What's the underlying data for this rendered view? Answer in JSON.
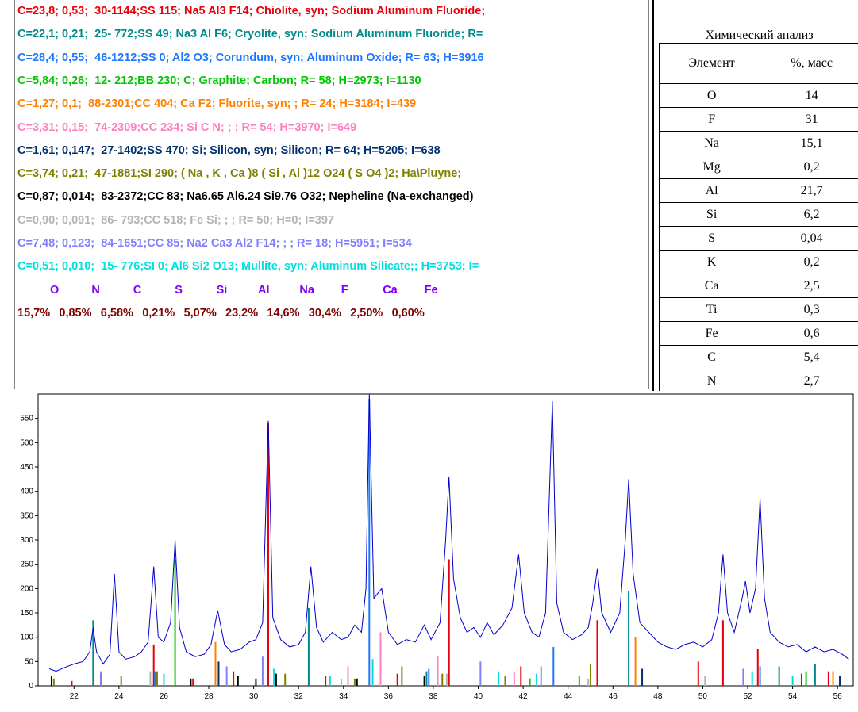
{
  "phase_list": [
    {
      "text": "C=23,8; 0,53;  30-1144;SS 115; Na5 Al3 F14; Chiolite, syn; Sodium Aluminum Fluoride;",
      "color": "#e8000b"
    },
    {
      "text": "C=22,1; 0,21;  25- 772;SS 49; Na3 Al F6; Cryolite, syn; Sodium Aluminum Fluoride; R=",
      "color": "#008b8b"
    },
    {
      "text": "C=28,4; 0,55;  46-1212;SS 0; Al2 O3; Corundum, syn; Aluminum Oxide; R= 63; H=3916",
      "color": "#1e78ff"
    },
    {
      "text": "C=5,84; 0,26;  12- 212;BB 230; C; Graphite; Carbon; R= 58; H=2973; I=1130",
      "color": "#00c800"
    },
    {
      "text": "C=1,27; 0,1;  88-2301;CC 404; Ca F2; Fluorite, syn; ; R= 24; H=3184; I=439",
      "color": "#ff8000"
    },
    {
      "text": "C=3,31; 0,15;  74-2309;CC 234; Si C N; ; ; R= 54; H=3970; I=649",
      "color": "#ff80c0"
    },
    {
      "text": "C=1,61; 0,147;  27-1402;SS 470; Si; Silicon, syn; Silicon; R= 64; H=5205; I=638",
      "color": "#00306e"
    },
    {
      "text": "C=3,74; 0,21;  47-1881;SI 290; ( Na , K , Ca )8 ( Si , Al )12 O24 ( S O4 )2; Ha\\Pluyne;",
      "color": "#808000"
    },
    {
      "text": "C=0,87; 0,014;  83-2372;CC 83; Na6.65 Al6.24 Si9.76 O32; Nepheline (Na-exchanged)",
      "color": "#000000"
    },
    {
      "text": "C=0,90; 0,091;  86- 793;CC 518; Fe Si; ; ; R= 50; H=0; I=397",
      "color": "#b4b4b4"
    },
    {
      "text": "C=7,48; 0,123;  84-1651;CC 85; Na2 Ca3 Al2 F14; ; ; R= 18; H=5951; I=534",
      "color": "#8080ff"
    },
    {
      "text": "C=0,51; 0,010;  15- 776;SI 0; Al6 Si2 O13; Mullite, syn; Aluminum Silicate;; H=3753; I=",
      "color": "#00e0e0"
    }
  ],
  "composition": {
    "elements": [
      "O",
      "N",
      "C",
      "S",
      "Si",
      "Al",
      "Na",
      "F",
      "Ca",
      "Fe"
    ],
    "values": [
      "15,7%",
      "0,85%",
      "6,58%",
      "0,21%",
      "5,07%",
      "23,2%",
      "14,6%",
      "30,4%",
      "2,50%",
      "0,60%"
    ],
    "element_color": "#8000ff",
    "value_color": "#800000"
  },
  "table": {
    "title": "Химический анализ",
    "headers": [
      "Элемент",
      "%, масс"
    ],
    "rows": [
      [
        "O",
        "14"
      ],
      [
        "F",
        "31"
      ],
      [
        "Na",
        "15,1"
      ],
      [
        "Mg",
        "0,2"
      ],
      [
        "Al",
        "21,7"
      ],
      [
        "Si",
        "6,2"
      ],
      [
        "S",
        "0,04"
      ],
      [
        "K",
        "0,2"
      ],
      [
        "Ca",
        "2,5"
      ],
      [
        "Ti",
        "0,3"
      ],
      [
        "Fe",
        "0,6"
      ],
      [
        "C",
        "5,4"
      ],
      [
        "N",
        "2,7"
      ]
    ]
  },
  "chart_data": [
    {
      "type": "line",
      "xlim": [
        20.4,
        56.7
      ],
      "xticks": [
        22,
        24,
        26,
        28,
        30,
        32,
        34,
        36,
        38,
        40,
        42,
        44,
        46,
        48,
        50,
        52,
        54,
        56
      ],
      "ylim": [
        0,
        600
      ],
      "yticks": [
        0,
        50,
        100,
        150,
        200,
        250,
        300,
        350,
        400,
        450,
        500,
        550
      ],
      "series": [
        {
          "color": "#0000cc",
          "x": [
            20.9,
            21.2,
            21.6,
            22.0,
            22.4,
            22.7,
            22.85,
            23.0,
            23.3,
            23.6,
            23.8,
            24.0,
            24.3,
            24.7,
            25.0,
            25.3,
            25.55,
            25.75,
            26.0,
            26.3,
            26.5,
            26.7,
            27.0,
            27.4,
            27.8,
            28.1,
            28.4,
            28.7,
            29.0,
            29.4,
            29.8,
            30.1,
            30.4,
            30.65,
            30.85,
            31.2,
            31.6,
            32.0,
            32.3,
            32.55,
            32.8,
            33.1,
            33.5,
            33.9,
            34.2,
            34.5,
            34.8,
            35.0,
            35.15,
            35.35,
            35.7,
            36.0,
            36.4,
            36.8,
            37.2,
            37.6,
            37.9,
            38.3,
            38.55,
            38.7,
            38.9,
            39.2,
            39.5,
            39.8,
            40.1,
            40.4,
            40.7,
            41.1,
            41.5,
            41.8,
            42.05,
            42.4,
            42.7,
            43.0,
            43.3,
            43.5,
            43.8,
            44.2,
            44.6,
            44.9,
            45.1,
            45.3,
            45.5,
            45.9,
            46.3,
            46.55,
            46.7,
            46.9,
            47.2,
            47.6,
            48.0,
            48.4,
            48.8,
            49.2,
            49.6,
            50.0,
            50.4,
            50.7,
            50.9,
            51.1,
            51.4,
            51.75,
            51.9,
            52.1,
            52.35,
            52.55,
            52.75,
            53.0,
            53.4,
            53.8,
            54.2,
            54.6,
            55.0,
            55.4,
            55.8,
            56.2,
            56.5
          ],
          "values": [
            35,
            30,
            38,
            45,
            50,
            70,
            120,
            70,
            45,
            65,
            230,
            70,
            55,
            60,
            70,
            90,
            245,
            100,
            90,
            130,
            300,
            120,
            70,
            60,
            65,
            85,
            155,
            85,
            70,
            75,
            90,
            95,
            130,
            545,
            140,
            95,
            80,
            85,
            110,
            245,
            120,
            90,
            110,
            95,
            100,
            125,
            110,
            200,
            600,
            180,
            200,
            110,
            85,
            95,
            90,
            125,
            95,
            130,
            300,
            430,
            220,
            140,
            110,
            120,
            100,
            130,
            105,
            125,
            160,
            270,
            150,
            110,
            100,
            150,
            585,
            170,
            110,
            95,
            105,
            120,
            170,
            240,
            150,
            110,
            150,
            300,
            425,
            230,
            130,
            110,
            90,
            80,
            75,
            85,
            90,
            80,
            95,
            150,
            270,
            150,
            110,
            180,
            215,
            150,
            200,
            385,
            180,
            110,
            90,
            80,
            85,
            70,
            80,
            70,
            75,
            65,
            55
          ]
        }
      ]
    },
    {
      "type": "stem",
      "xlim": [
        20.4,
        56.7
      ],
      "ylim": [
        0,
        600
      ],
      "series": [
        {
          "color": "#e8000b",
          "x": [
            21.9,
            25.55,
            27.3,
            29.1,
            30.65,
            33.2,
            36.4,
            38.7,
            41.9,
            45.3,
            49.8,
            50.9,
            52.45,
            54.4,
            55.6
          ],
          "values": [
            10,
            85,
            15,
            30,
            540,
            20,
            25,
            260,
            40,
            135,
            50,
            135,
            75,
            25,
            30
          ]
        },
        {
          "color": "#008b8b",
          "x": [
            22.85,
            32.45,
            37.7,
            46.7,
            53.4,
            55.0
          ],
          "values": [
            135,
            160,
            30,
            195,
            40,
            45
          ]
        },
        {
          "color": "#1e78ff",
          "x": [
            25.6,
            35.15,
            37.8,
            43.35,
            52.55
          ],
          "values": [
            30,
            590,
            35,
            80,
            40
          ]
        },
        {
          "color": "#00c800",
          "x": [
            26.5,
            42.3,
            44.5,
            54.6
          ],
          "values": [
            260,
            15,
            20,
            30
          ]
        },
        {
          "color": "#ff8000",
          "x": [
            28.3,
            47.0,
            55.8
          ],
          "values": [
            90,
            100,
            30
          ]
        },
        {
          "color": "#ff80c0",
          "x": [
            34.2,
            35.65,
            38.2,
            41.6
          ],
          "values": [
            40,
            110,
            60,
            30
          ]
        },
        {
          "color": "#00306e",
          "x": [
            28.44,
            47.3,
            56.1
          ],
          "values": [
            50,
            35,
            20
          ]
        },
        {
          "color": "#808000",
          "x": [
            21.1,
            24.1,
            25.7,
            31.4,
            34.5,
            36.6,
            38.4,
            41.2,
            45.0
          ],
          "values": [
            15,
            20,
            30,
            25,
            15,
            40,
            25,
            20,
            45
          ]
        },
        {
          "color": "#000000",
          "x": [
            21.0,
            23.2,
            27.2,
            29.3,
            30.1,
            31.0,
            34.6,
            37.6
          ],
          "values": [
            20,
            25,
            15,
            20,
            15,
            25,
            15,
            20
          ]
        },
        {
          "color": "#b4b4b4",
          "x": [
            25.4,
            33.9,
            38.6,
            44.9,
            50.1
          ],
          "values": [
            30,
            15,
            25,
            15,
            20
          ]
        },
        {
          "color": "#8080ff",
          "x": [
            23.2,
            28.8,
            30.4,
            40.1,
            42.8,
            51.8
          ],
          "values": [
            30,
            40,
            60,
            50,
            40,
            35
          ]
        },
        {
          "color": "#00e0e0",
          "x": [
            26.0,
            30.9,
            33.4,
            35.3,
            40.9,
            42.6,
            52.2,
            54.0
          ],
          "values": [
            25,
            35,
            20,
            55,
            30,
            25,
            30,
            20
          ]
        }
      ]
    }
  ]
}
